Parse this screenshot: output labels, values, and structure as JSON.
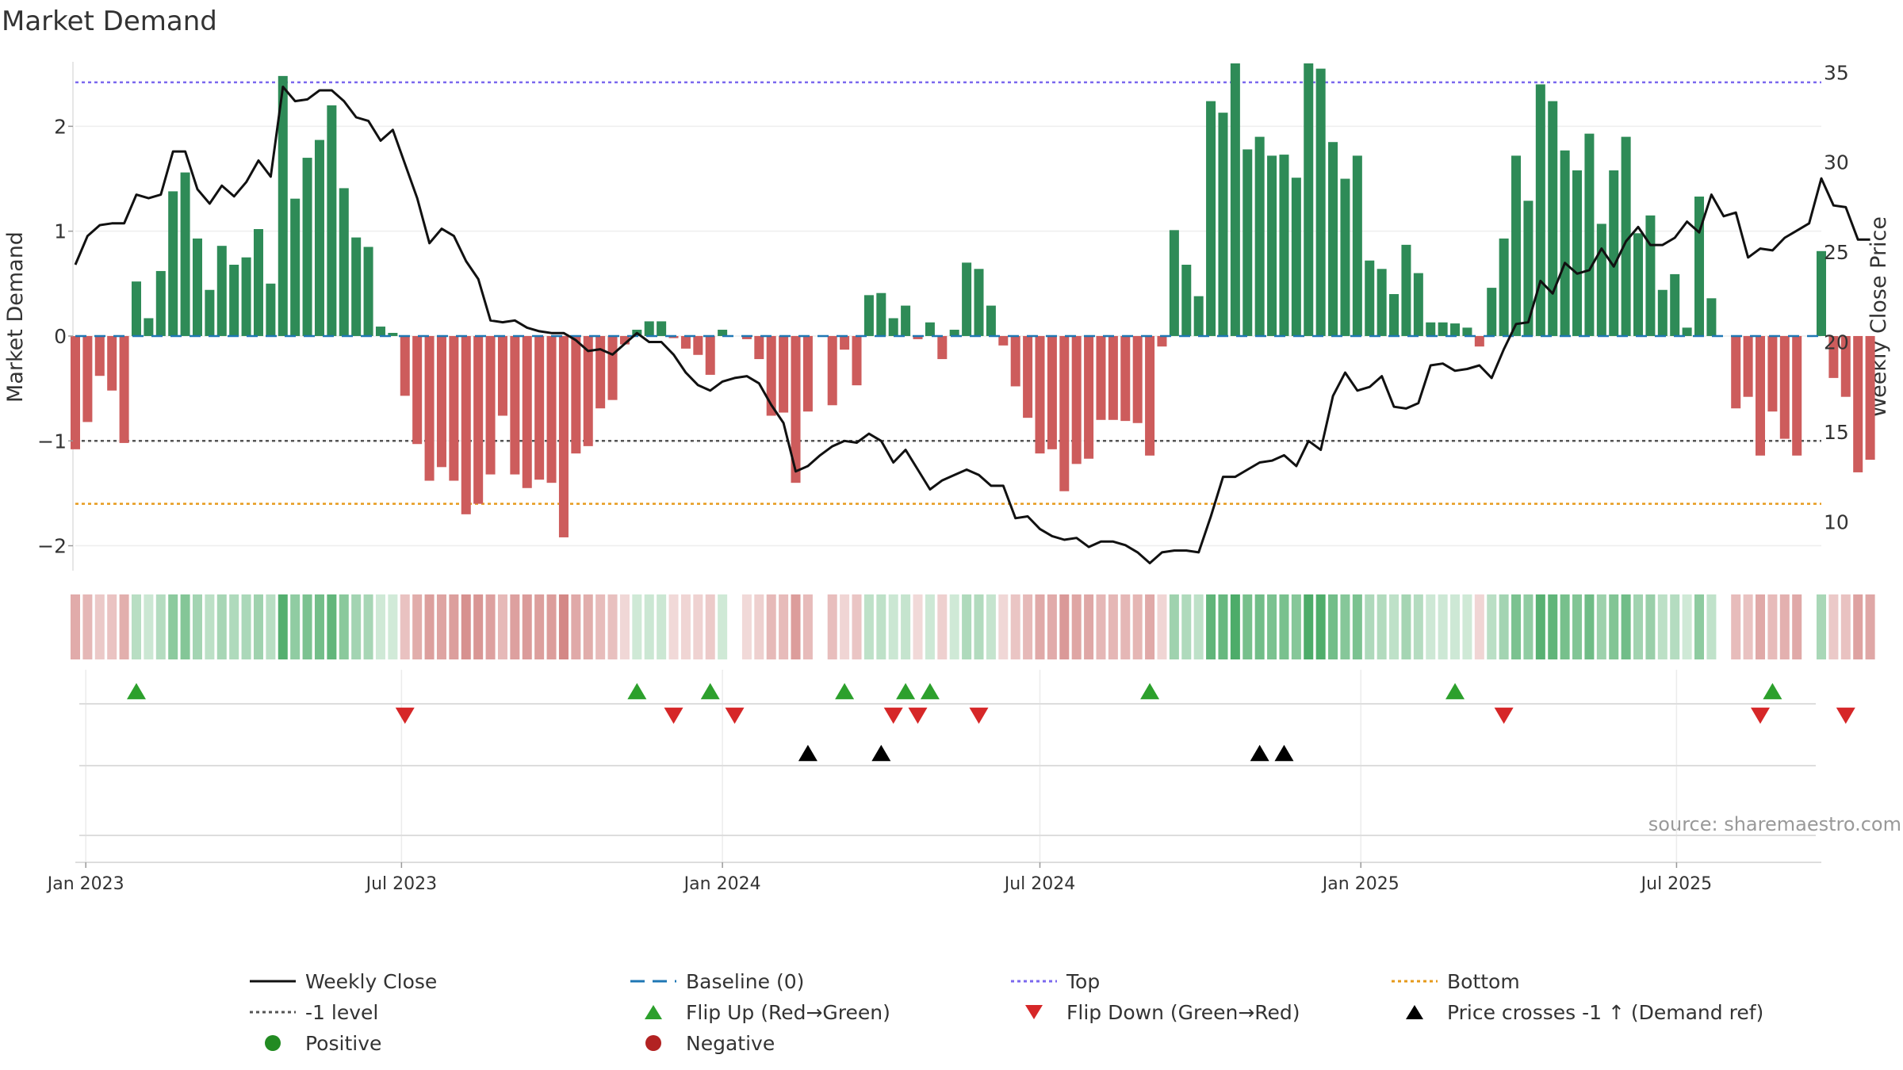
{
  "chart_data": {
    "type": "bar",
    "title": "Market Demand",
    "ylabel_left": "Market Demand",
    "ylabel_right": "Weekly Close Price",
    "source": "source: sharemaestro.com",
    "ylim_left": [
      -2.2,
      2.6
    ],
    "ylim_right": [
      7.5,
      35.5
    ],
    "yticks_left": [
      {
        "v": 2,
        "label": "2"
      },
      {
        "v": 1,
        "label": "1"
      },
      {
        "v": 0,
        "label": "0"
      },
      {
        "v": -1,
        "label": "−1"
      },
      {
        "v": -2,
        "label": "−2"
      }
    ],
    "yticks_right": [
      {
        "v": 35,
        "label": "35"
      },
      {
        "v": 30,
        "label": "30"
      },
      {
        "v": 25,
        "label": "25"
      },
      {
        "v": 20,
        "label": "20"
      },
      {
        "v": 15,
        "label": "15"
      },
      {
        "v": 10,
        "label": "10"
      }
    ],
    "x_start": "2022-12-26",
    "x_end": "2025-09-22",
    "xticks": [
      {
        "date": "2023-01-01",
        "label": "Jan 2023"
      },
      {
        "date": "2023-07-01",
        "label": "Jul 2023"
      },
      {
        "date": "2024-01-01",
        "label": "Jan 2024"
      },
      {
        "date": "2024-07-01",
        "label": "Jul 2024"
      },
      {
        "date": "2025-01-01",
        "label": "Jan 2025"
      },
      {
        "date": "2025-07-01",
        "label": "Jul 2025"
      }
    ],
    "reference_lines": {
      "top": 2.42,
      "minus_one": -1.0,
      "bottom": -1.6
    },
    "colors": {
      "positive": "#2e8b57",
      "negative": "#cd5c5c",
      "close": "#111111",
      "top": "#7b68ee",
      "minus_one": "#555555",
      "bottom": "#e69a1c",
      "baseline": "#1f77b4",
      "flip_up": "#2ca02c",
      "flip_down": "#d62728",
      "cross": "#000000"
    },
    "demand": [
      -1.08,
      -0.82,
      -0.38,
      -0.52,
      -1.02,
      0.52,
      0.17,
      0.62,
      1.38,
      1.56,
      0.93,
      0.44,
      0.86,
      0.68,
      0.75,
      1.02,
      0.5,
      2.48,
      1.31,
      1.7,
      1.87,
      2.2,
      1.41,
      0.94,
      0.85,
      0.09,
      0.03,
      -0.57,
      -1.03,
      -1.38,
      -1.25,
      -1.38,
      -1.7,
      -1.6,
      -1.32,
      -0.76,
      -1.32,
      -1.45,
      -1.37,
      -1.4,
      -1.92,
      -1.12,
      -1.05,
      -0.69,
      -0.61,
      -0.08,
      0.06,
      0.14,
      0.14,
      -0.02,
      -0.12,
      -0.18,
      -0.37,
      0.06,
      0.0,
      -0.03,
      -0.22,
      -0.76,
      -0.73,
      -1.4,
      -0.72,
      0.0,
      -0.66,
      -0.13,
      -0.47,
      0.39,
      0.41,
      0.17,
      0.29,
      -0.03,
      0.13,
      -0.22,
      0.06,
      0.7,
      0.64,
      0.29,
      -0.09,
      -0.48,
      -0.78,
      -1.12,
      -1.08,
      -1.48,
      -1.22,
      -1.17,
      -0.8,
      -0.8,
      -0.81,
      -0.83,
      -1.14,
      -0.1,
      1.01,
      0.68,
      0.38,
      2.24,
      2.13,
      2.6,
      1.78,
      1.9,
      1.72,
      1.73,
      1.51,
      2.6,
      2.55,
      1.85,
      1.5,
      1.72,
      0.72,
      0.64,
      0.4,
      0.87,
      0.6,
      0.13,
      0.13,
      0.12,
      0.08,
      -0.1,
      0.46,
      0.93,
      1.72,
      1.29,
      2.4,
      2.24,
      1.77,
      1.58,
      1.93,
      1.07,
      1.58,
      1.9,
      0.98,
      1.15,
      0.44,
      0.59,
      0.08,
      1.33,
      0.36,
      0.0,
      -0.69,
      -0.58,
      -1.14,
      -0.72,
      -0.98,
      -1.14,
      0.0,
      0.81,
      -0.4,
      -0.58,
      -1.3,
      -1.18
    ],
    "close": [
      24.3,
      25.9,
      26.5,
      26.6,
      26.6,
      28.2,
      28.0,
      28.2,
      30.6,
      30.6,
      28.5,
      27.7,
      28.7,
      28.1,
      28.9,
      30.1,
      29.2,
      34.2,
      33.4,
      33.5,
      34.0,
      34.0,
      33.4,
      32.5,
      32.3,
      31.2,
      31.8,
      29.9,
      28.0,
      25.5,
      26.3,
      25.9,
      24.5,
      23.5,
      21.2,
      21.1,
      21.2,
      20.8,
      20.6,
      20.5,
      20.5,
      20.1,
      19.5,
      19.6,
      19.3,
      19.9,
      20.5,
      20.0,
      20.0,
      19.3,
      18.3,
      17.6,
      17.3,
      17.8,
      18.0,
      18.1,
      17.7,
      16.5,
      15.5,
      12.8,
      13.1,
      13.7,
      14.2,
      14.5,
      14.4,
      14.9,
      14.5,
      13.3,
      14.0,
      12.9,
      11.8,
      12.3,
      12.6,
      12.9,
      12.6,
      12.0,
      12.0,
      10.2,
      10.3,
      9.6,
      9.2,
      9.0,
      9.1,
      8.6,
      8.9,
      8.9,
      8.7,
      8.3,
      7.7,
      8.3,
      8.4,
      8.4,
      8.3,
      10.3,
      12.5,
      12.5,
      12.9,
      13.3,
      13.4,
      13.7,
      13.1,
      14.5,
      14.0,
      17.0,
      18.3,
      17.3,
      17.5,
      18.1,
      16.4,
      16.3,
      16.6,
      18.7,
      18.8,
      18.4,
      18.5,
      18.7,
      18.0,
      19.6,
      21.0,
      21.1,
      23.4,
      22.7,
      24.4,
      23.8,
      24.0,
      25.2,
      24.2,
      25.6,
      26.4,
      25.4,
      25.4,
      25.8,
      26.7,
      26.1,
      28.2,
      27.0,
      27.2,
      24.7,
      25.2,
      25.1,
      25.8,
      26.2,
      26.6,
      29.1,
      27.6,
      27.5,
      25.7,
      25.7
    ],
    "flip_up_idx": [
      5,
      46,
      52,
      63,
      68,
      70,
      88,
      113,
      139
    ],
    "flip_down_idx": [
      27,
      49,
      54,
      67,
      69,
      74,
      117,
      138,
      145
    ],
    "cross_idx": [
      60,
      66,
      97,
      99
    ],
    "legend": [
      {
        "type": "line",
        "color": "#111111",
        "dash": "none",
        "label": "Weekly Close"
      },
      {
        "type": "line",
        "color": "#1f77b4",
        "dash": "dashed",
        "label": "Baseline (0)"
      },
      {
        "type": "line",
        "color": "#7b68ee",
        "dash": "dotted",
        "label": "Top"
      },
      {
        "type": "line",
        "color": "#e69a1c",
        "dash": "dotted",
        "label": "Bottom"
      },
      {
        "type": "line",
        "color": "#555555",
        "dash": "dotted",
        "label": "-1 level"
      },
      {
        "type": "tri-up",
        "color": "#2ca02c",
        "label": "Flip Up (Red→Green)"
      },
      {
        "type": "tri-down",
        "color": "#d62728",
        "label": "Flip Down (Green→Red)"
      },
      {
        "type": "tri-up",
        "color": "#000000",
        "label": "Price crosses -1 ↑ (Demand ref)"
      },
      {
        "type": "dot",
        "color": "#228b22",
        "label": "Positive"
      },
      {
        "type": "dot",
        "color": "#b22222",
        "label": "Negative"
      }
    ]
  }
}
